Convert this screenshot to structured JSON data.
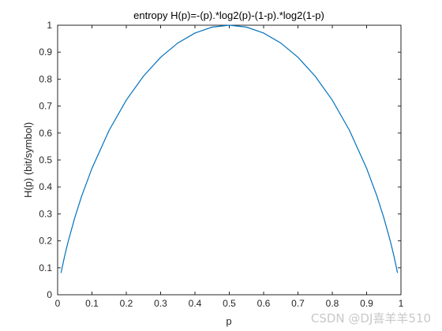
{
  "chart_data": {
    "type": "line",
    "title": "entropy H(p)=-(p).*log2(p)-(1-p).*log2(1-p)",
    "xlabel": "p",
    "ylabel": "H(p)  (bit/symbol)",
    "xlim": [
      0,
      1
    ],
    "ylim": [
      0,
      1
    ],
    "xticks": [
      "0",
      "0.1",
      "0.2",
      "0.3",
      "0.4",
      "0.5",
      "0.6",
      "0.7",
      "0.8",
      "0.9",
      "1"
    ],
    "yticks": [
      "0",
      "0.1",
      "0.2",
      "0.3",
      "0.4",
      "0.5",
      "0.6",
      "0.7",
      "0.8",
      "0.9",
      "1"
    ],
    "grid": false,
    "series": [
      {
        "color": "#0072bd",
        "x": [
          0.01,
          0.02,
          0.03,
          0.05,
          0.07,
          0.1,
          0.15,
          0.2,
          0.25,
          0.3,
          0.35,
          0.4,
          0.45,
          0.5,
          0.55,
          0.6,
          0.65,
          0.7,
          0.75,
          0.8,
          0.85,
          0.9,
          0.93,
          0.95,
          0.97,
          0.98,
          0.99
        ],
        "y": [
          0.081,
          0.141,
          0.194,
          0.286,
          0.366,
          0.469,
          0.61,
          0.722,
          0.811,
          0.881,
          0.934,
          0.971,
          0.993,
          1.0,
          0.993,
          0.971,
          0.934,
          0.881,
          0.811,
          0.722,
          0.61,
          0.469,
          0.366,
          0.286,
          0.194,
          0.141,
          0.081
        ]
      }
    ]
  },
  "watermark": "CSDN @DJ喜羊羊510"
}
